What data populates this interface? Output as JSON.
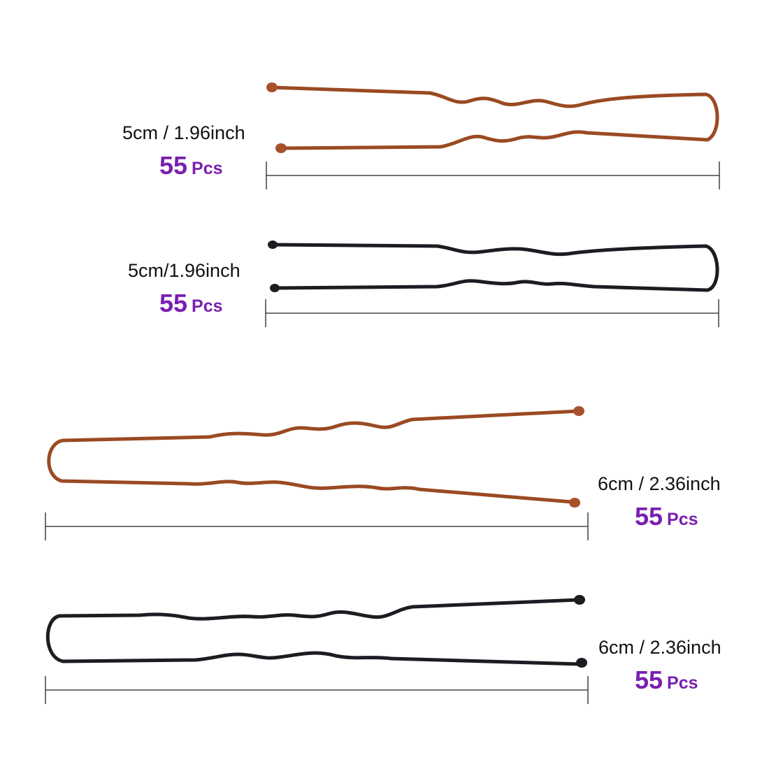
{
  "colors": {
    "brown_pin": "#9a4a22",
    "black_pin": "#1c1c22",
    "quantity_text": "#7a1fb0"
  },
  "items": [
    {
      "size": "5cm / 1.96inch",
      "qty_number": "55",
      "qty_unit": "Pcs",
      "pin_color": "brown"
    },
    {
      "size": "5cm/1.96inch",
      "qty_number": "55",
      "qty_unit": "Pcs",
      "pin_color": "black"
    },
    {
      "size": "6cm / 2.36inch",
      "qty_number": "55",
      "qty_unit": "Pcs",
      "pin_color": "brown"
    },
    {
      "size": "6cm / 2.36inch",
      "qty_number": "55",
      "qty_unit": "Pcs",
      "pin_color": "black"
    }
  ]
}
